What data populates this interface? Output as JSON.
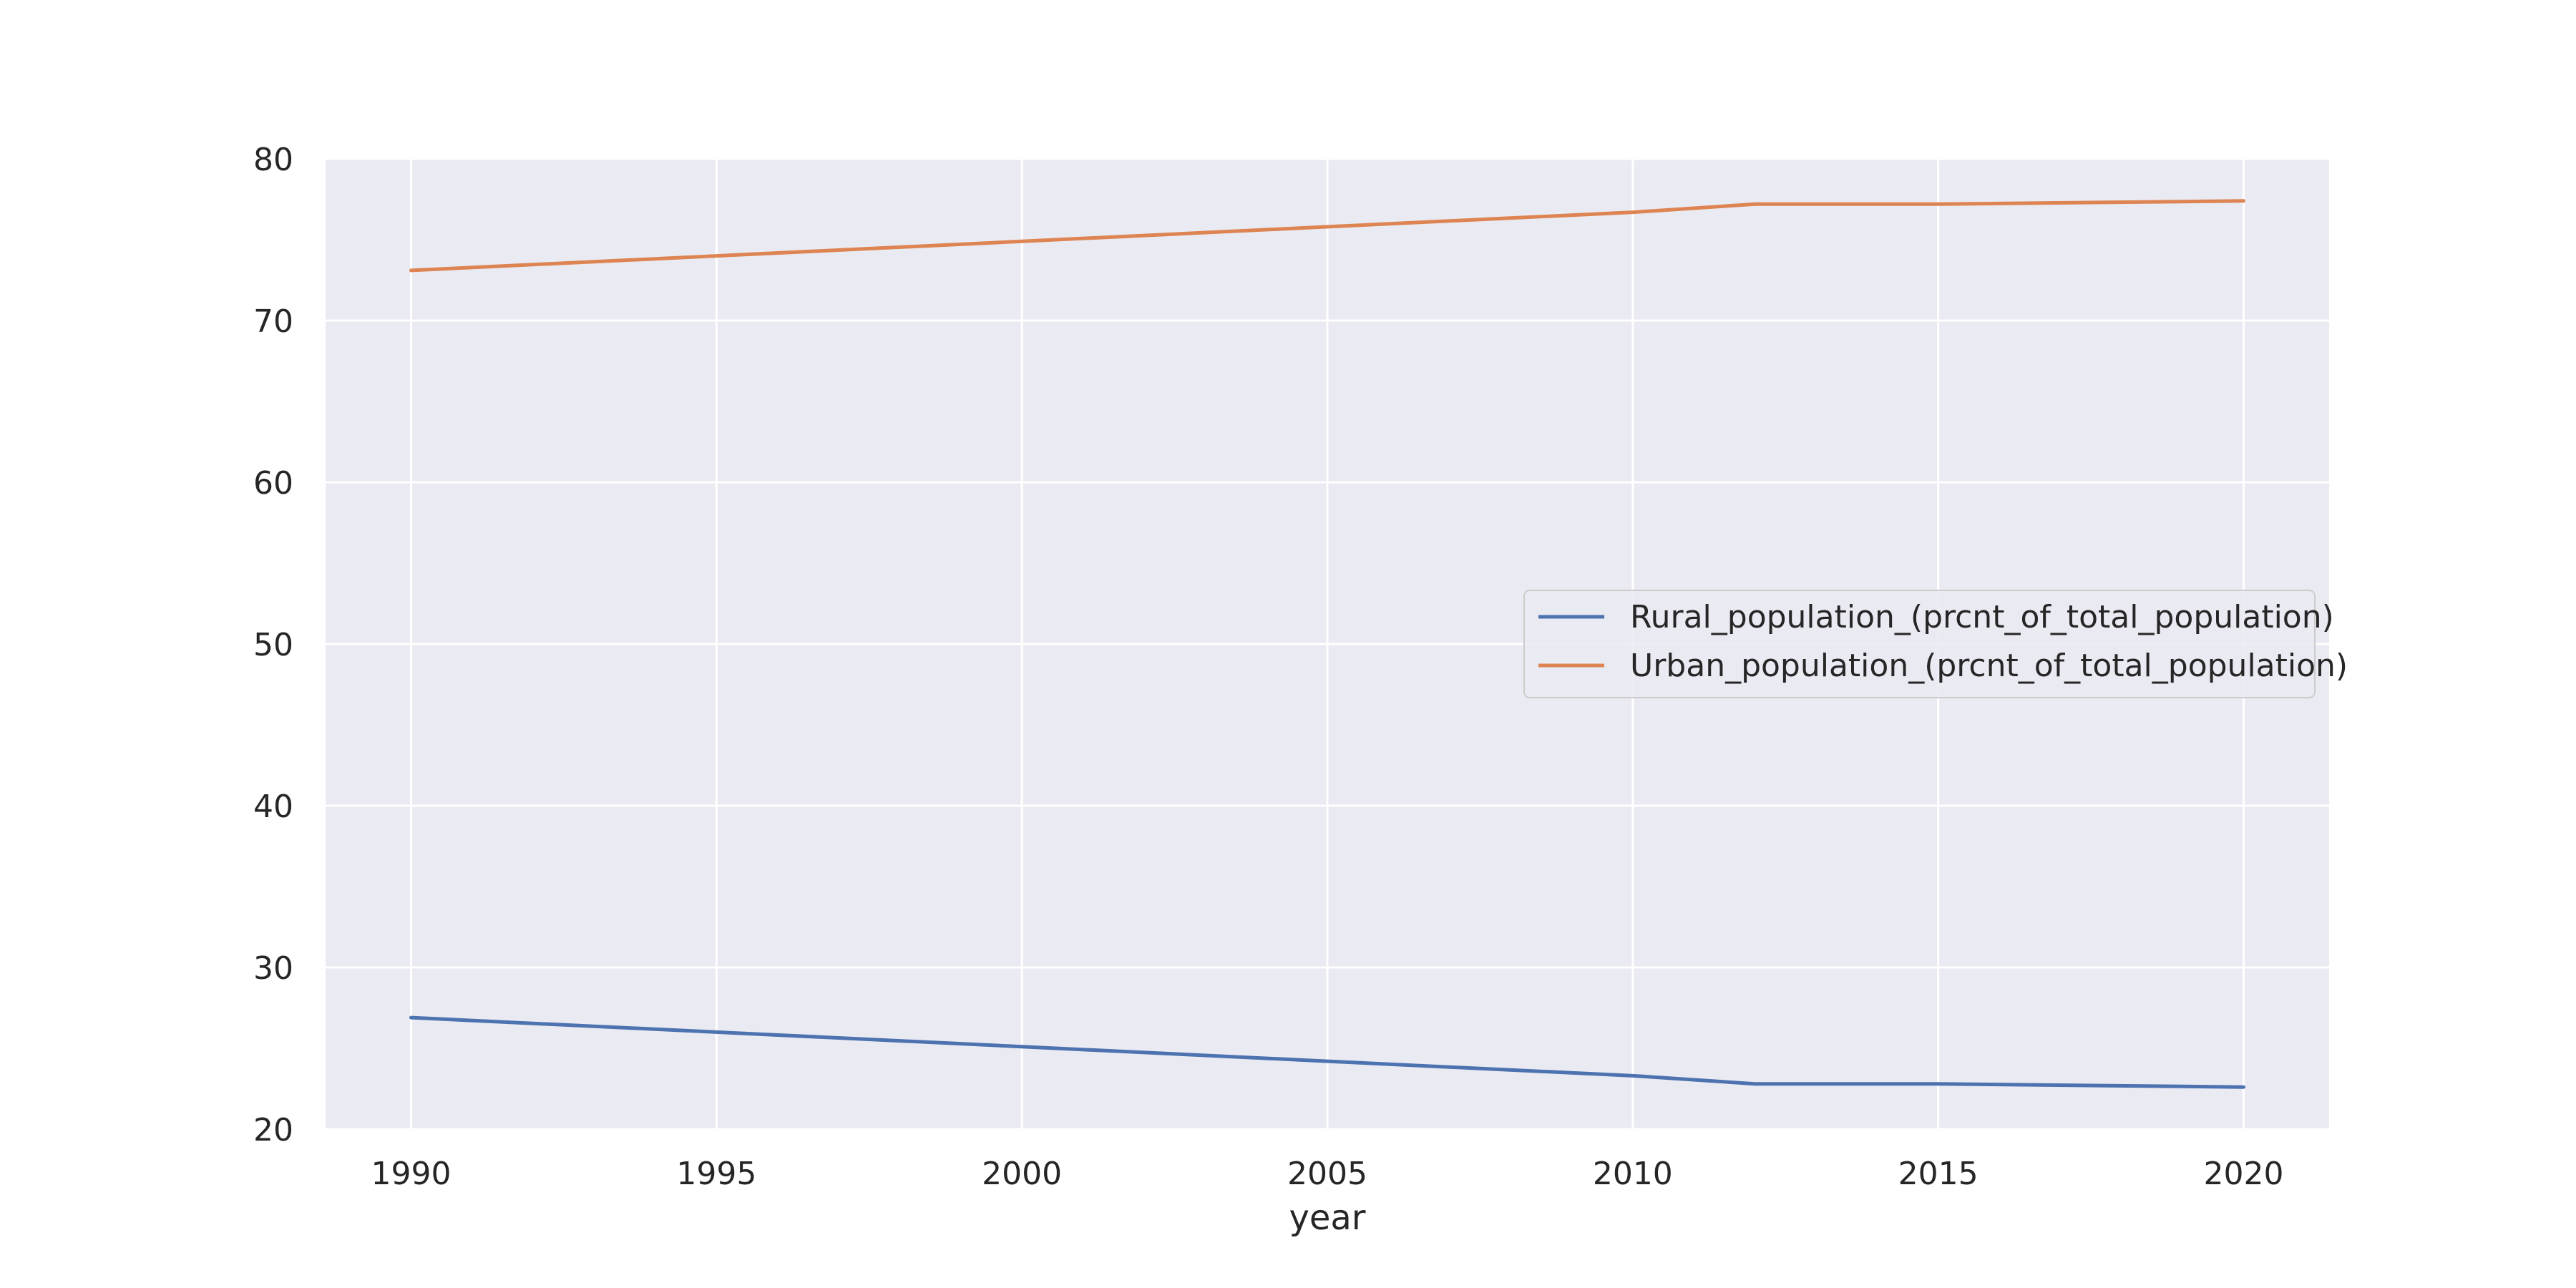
{
  "chart_data": {
    "type": "line",
    "title": "",
    "xlabel": "year",
    "ylabel": "",
    "xlim": [
      1988.6,
      2021.4
    ],
    "ylim": [
      20,
      80
    ],
    "x_ticks": [
      1990,
      1995,
      2000,
      2005,
      2010,
      2015,
      2020
    ],
    "y_ticks": [
      20,
      30,
      40,
      50,
      60,
      70,
      80
    ],
    "x_tick_labels": [
      "1990",
      "1995",
      "2000",
      "2005",
      "2010",
      "2015",
      "2020"
    ],
    "y_tick_labels": [
      "20",
      "30",
      "40",
      "50",
      "60",
      "70",
      "80"
    ],
    "grid": true,
    "legend_position": "center-right",
    "series": [
      {
        "name": "Rural_population_(prcnt_of_total_population)",
        "color": "#4c72b0",
        "x": [
          1990,
          1995,
          2000,
          2005,
          2010,
          2012,
          2015,
          2020
        ],
        "y": [
          26.9,
          26.0,
          25.1,
          24.2,
          23.3,
          22.8,
          22.8,
          22.6
        ]
      },
      {
        "name": "Urban_population_(prcnt_of_total_population)",
        "color": "#dd8452",
        "x": [
          1990,
          1995,
          2000,
          2005,
          2010,
          2012,
          2015,
          2020
        ],
        "y": [
          73.1,
          74.0,
          74.9,
          75.8,
          76.7,
          77.2,
          77.2,
          77.4
        ]
      }
    ]
  }
}
